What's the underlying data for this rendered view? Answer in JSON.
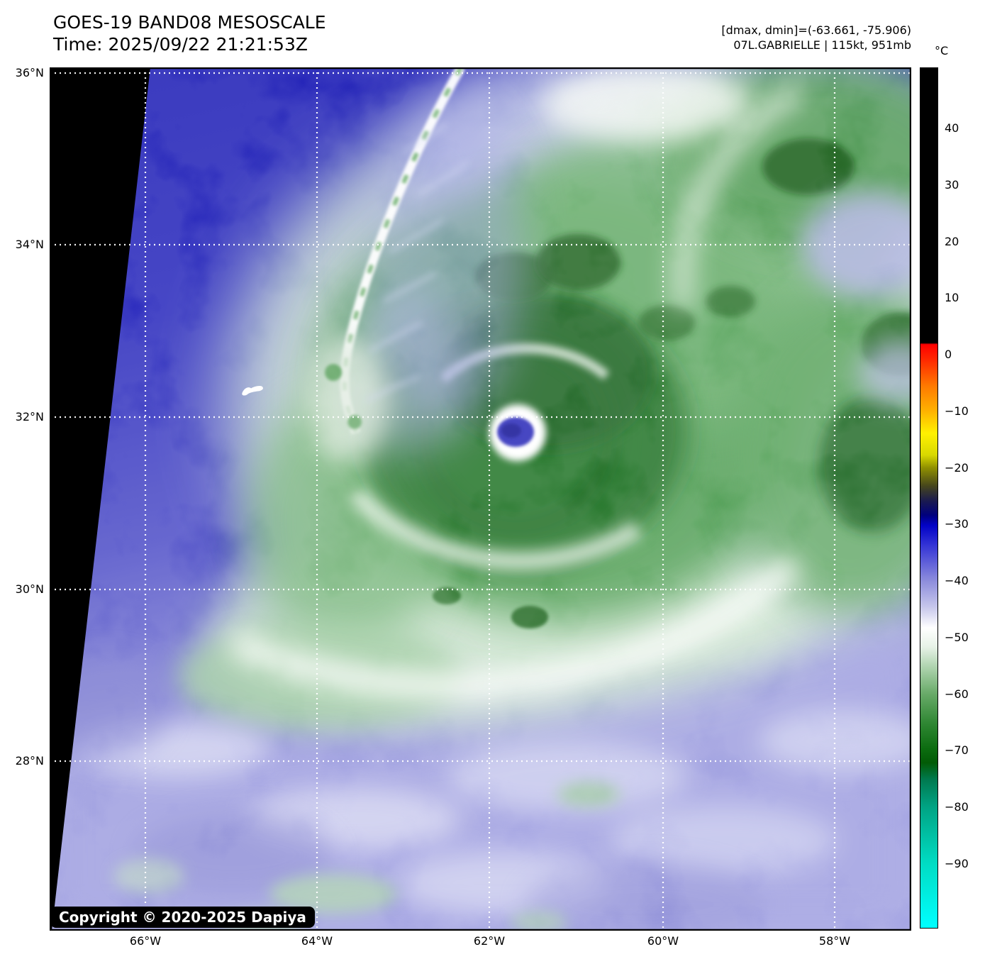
{
  "header": {
    "title": "GOES-19 BAND08 MESOSCALE",
    "time_line": "Time: 2025/09/22 21:21:53Z",
    "dmax_dmin": "[dmax, dmin]=(-63.661, -75.906)",
    "storm_info": "07L.GABRIELLE | 115kt, 951mb"
  },
  "axes": {
    "lat_ticks": [
      "36°N",
      "34°N",
      "32°N",
      "30°N",
      "28°N"
    ],
    "lon_ticks": [
      "66°W",
      "64°W",
      "62°W",
      "60°W",
      "58°W"
    ]
  },
  "colorbar": {
    "unit": "°C",
    "tick_labels": [
      "40",
      "30",
      "20",
      "10",
      "0",
      "−10",
      "−20",
      "−30",
      "−40",
      "−50",
      "−60",
      "−70",
      "−80",
      "−90"
    ],
    "scale_anchor_colors": {
      "above_0C": "#000000",
      "0C": "#ff0000",
      "-10C": "#ffb400",
      "-20C": "#8f8f00",
      "-30C": "#0202c6",
      "-40C": "#8c8cdc",
      "-48C": "#ffffff",
      "-60C": "#68aa68",
      "-70C": "#0b6b0f",
      "-80C": "#00a383",
      "-90C": "#00dcc3",
      "min": "#00ffff"
    }
  },
  "map": {
    "copyright": "Copyright © 2020-2025 Dapiya"
  }
}
